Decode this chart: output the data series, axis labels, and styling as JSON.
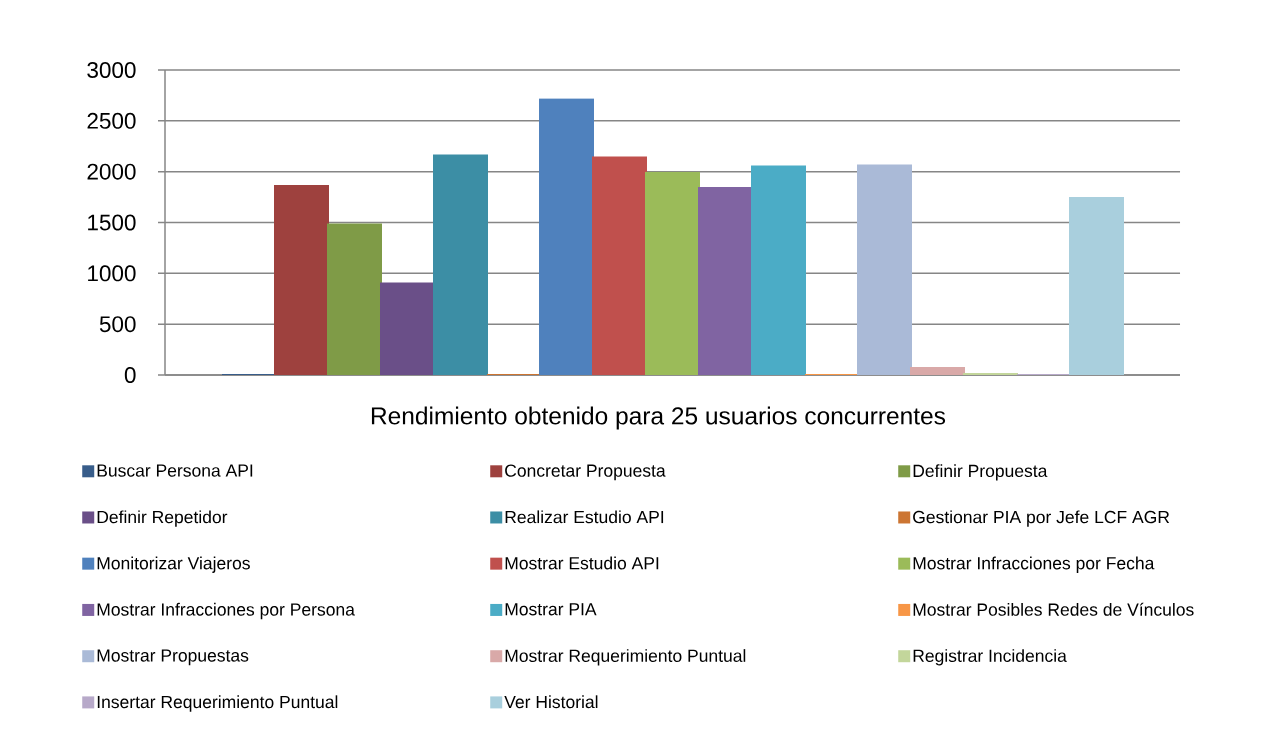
{
  "chart_data": {
    "type": "bar",
    "xlabel": "Rendimiento obtenido para 25 usuarios concurrentes",
    "categories": [
      null
    ],
    "series": [
      {
        "name": "Buscar Persona API",
        "color": "#385d8a",
        "values": [
          0
        ]
      },
      {
        "name": "Concretar Propuesta",
        "color": "#9e413e",
        "values": [
          1860
        ]
      },
      {
        "name": "Definir Propuesta",
        "color": "#7f9b47",
        "values": [
          1480
        ]
      },
      {
        "name": "Definir Repetidor",
        "color": "#6a4f88",
        "values": [
          900
        ]
      },
      {
        "name": "Realizar Estudio API",
        "color": "#3c8ea5",
        "values": [
          2160
        ]
      },
      {
        "name": "Gestionar PIA por Jefe LCF AGR",
        "color": "#cc7532",
        "values": [
          0
        ]
      },
      {
        "name": "Monitorizar Viajeros",
        "color": "#4f81bd",
        "values": [
          2710
        ]
      },
      {
        "name": "Mostrar Estudio API",
        "color": "#c0504d",
        "values": [
          2140
        ]
      },
      {
        "name": "Mostrar Infracciones por Fecha",
        "color": "#9bbb59",
        "values": [
          1990
        ]
      },
      {
        "name": "Mostrar Infracciones por Persona",
        "color": "#8064a2",
        "values": [
          1840
        ]
      },
      {
        "name": "Mostrar PIA",
        "color": "#4bacc6",
        "values": [
          2050
        ]
      },
      {
        "name": "Mostrar Posibles Redes de Vínculos",
        "color": "#f79646",
        "values": [
          0
        ]
      },
      {
        "name": "Mostrar Propuestas",
        "color": "#aabad7",
        "values": [
          2060
        ]
      },
      {
        "name": "Mostrar Requerimiento Puntual",
        "color": "#d9a9a8",
        "values": [
          70
        ]
      },
      {
        "name": "Registrar Incidencia",
        "color": "#c3d69b",
        "values": [
          10
        ]
      },
      {
        "name": "Insertar Requerimiento Puntual",
        "color": "#b7a9c9",
        "values": [
          0
        ]
      },
      {
        "name": "Ver Historial",
        "color": "#a9cfdd",
        "values": [
          1740
        ]
      }
    ],
    "ylim": [
      0,
      3000
    ],
    "yticks": [
      0,
      500,
      1000,
      1500,
      2000,
      2500,
      3000
    ],
    "grid": "y",
    "legend": "bottom"
  }
}
